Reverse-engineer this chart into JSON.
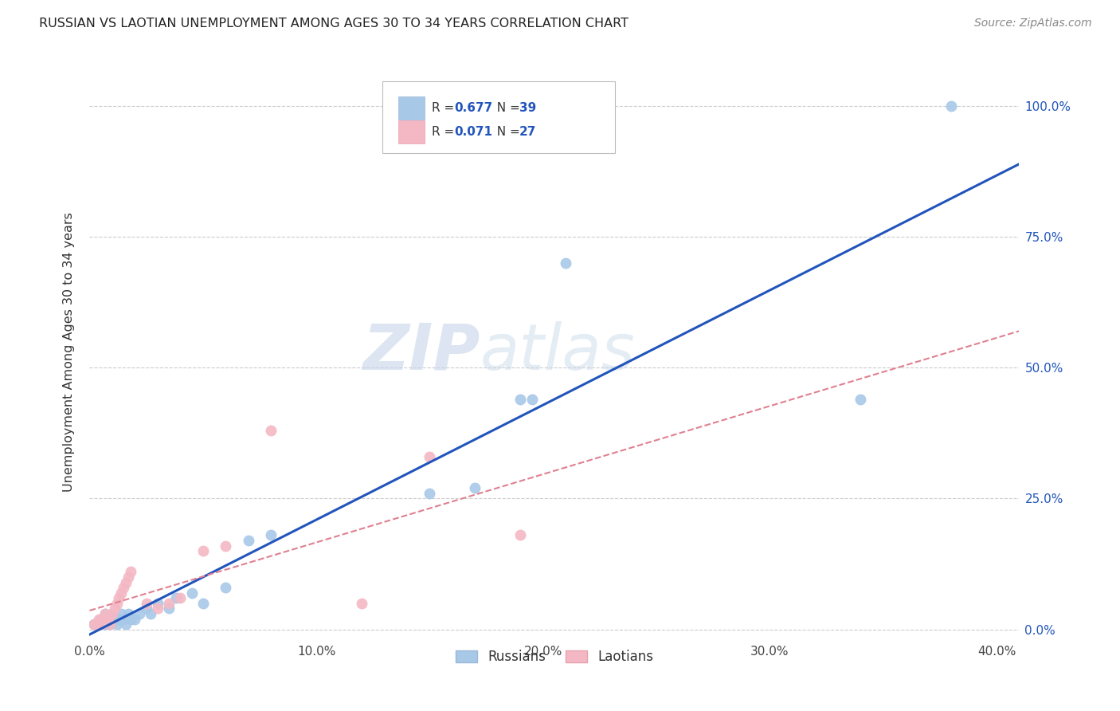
{
  "title": "RUSSIAN VS LAOTIAN UNEMPLOYMENT AMONG AGES 30 TO 34 YEARS CORRELATION CHART",
  "source": "Source: ZipAtlas.com",
  "ylabel": "Unemployment Among Ages 30 to 34 years",
  "russian_R": "0.677",
  "russian_N": "39",
  "laotian_R": "0.071",
  "laotian_N": "27",
  "russian_color": "#a8c8e8",
  "laotian_color": "#f4b8c4",
  "russian_line_color": "#2255bb",
  "laotian_line_color": "#e08090",
  "watermark_zip": "ZIP",
  "watermark_atlas": "atlas",
  "xlim": [
    0.0,
    0.41
  ],
  "ylim": [
    -0.02,
    1.08
  ],
  "ytick_vals": [
    0.0,
    0.25,
    0.5,
    0.75,
    1.0
  ],
  "ytick_labels": [
    "0.0%",
    "25.0%",
    "50.0%",
    "75.0%",
    "100.0%"
  ],
  "xtick_vals": [
    0.0,
    0.1,
    0.2,
    0.3,
    0.4
  ],
  "xtick_labels": [
    "0.0%",
    "10.0%",
    "20.0%",
    "30.0%",
    "40.0%"
  ],
  "russian_x": [
    0.002,
    0.003,
    0.004,
    0.005,
    0.006,
    0.006,
    0.007,
    0.007,
    0.008,
    0.009,
    0.01,
    0.01,
    0.011,
    0.012,
    0.013,
    0.014,
    0.015,
    0.016,
    0.017,
    0.018,
    0.02,
    0.022,
    0.025,
    0.027,
    0.03,
    0.035,
    0.038,
    0.045,
    0.05,
    0.06,
    0.07,
    0.08,
    0.15,
    0.17,
    0.19,
    0.195,
    0.21,
    0.34,
    0.38
  ],
  "russian_y": [
    0.01,
    0.01,
    0.01,
    0.02,
    0.01,
    0.02,
    0.01,
    0.03,
    0.02,
    0.01,
    0.02,
    0.03,
    0.02,
    0.01,
    0.02,
    0.03,
    0.02,
    0.01,
    0.03,
    0.02,
    0.02,
    0.03,
    0.04,
    0.03,
    0.05,
    0.04,
    0.06,
    0.07,
    0.05,
    0.08,
    0.17,
    0.18,
    0.26,
    0.27,
    0.44,
    0.44,
    0.7,
    0.44,
    1.0
  ],
  "laotian_x": [
    0.002,
    0.003,
    0.004,
    0.005,
    0.006,
    0.007,
    0.008,
    0.009,
    0.01,
    0.011,
    0.012,
    0.013,
    0.014,
    0.015,
    0.016,
    0.017,
    0.018,
    0.025,
    0.03,
    0.035,
    0.04,
    0.05,
    0.06,
    0.08,
    0.12,
    0.15,
    0.19
  ],
  "laotian_y": [
    0.01,
    0.01,
    0.02,
    0.01,
    0.02,
    0.03,
    0.02,
    0.01,
    0.03,
    0.04,
    0.05,
    0.06,
    0.07,
    0.08,
    0.09,
    0.1,
    0.11,
    0.05,
    0.04,
    0.05,
    0.06,
    0.15,
    0.16,
    0.38,
    0.05,
    0.33,
    0.18
  ]
}
